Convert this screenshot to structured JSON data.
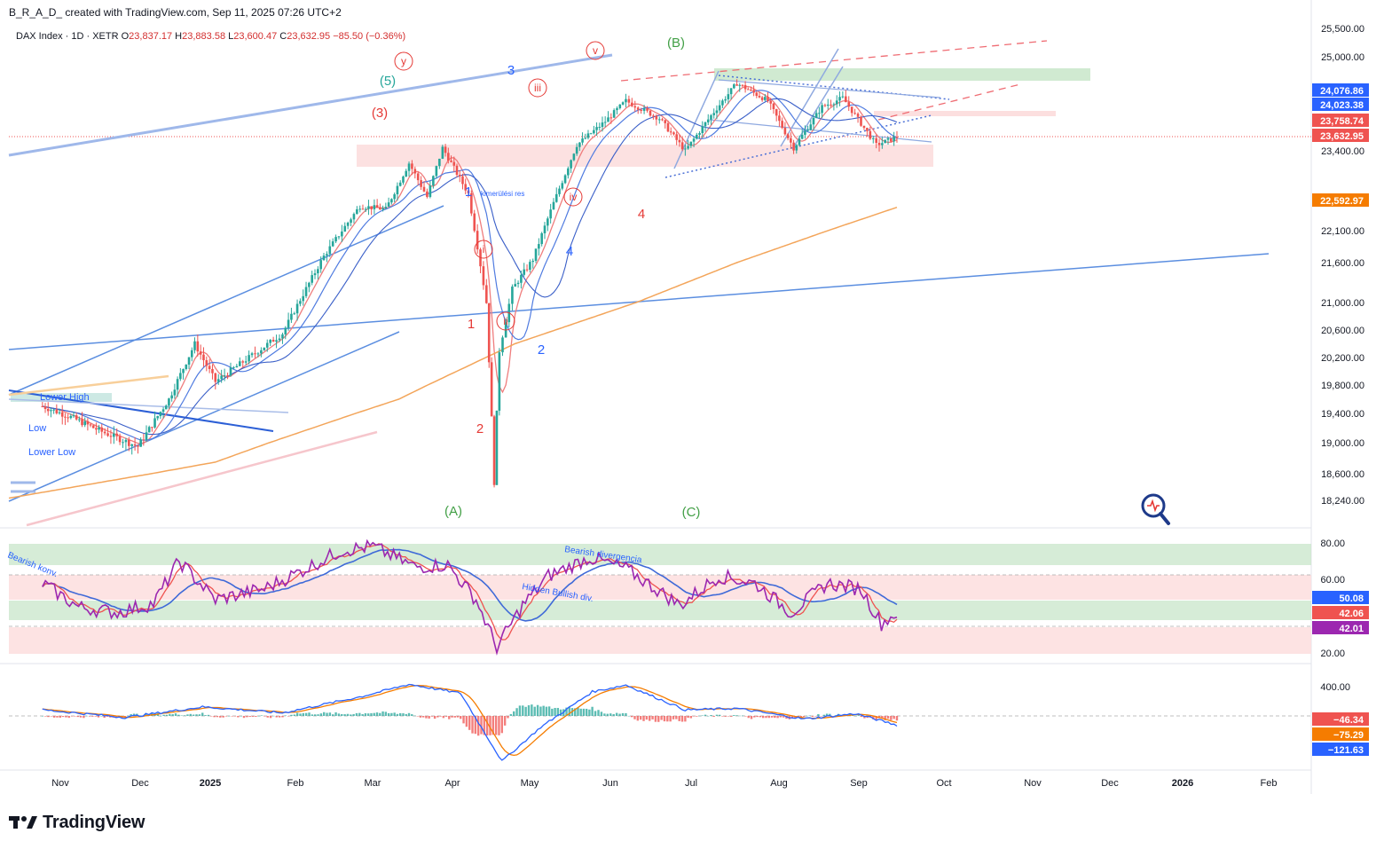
{
  "header": {
    "caption": "B_R_A_D_ created with TradingView.com, Sep 11, 2025 07:26 UTC+2"
  },
  "legend": {
    "symbol": "DAX Index · 1D · XETR",
    "open_label": "O",
    "open": "23,837.17",
    "high_label": "H",
    "high": "23,883.58",
    "low_label": "L",
    "low": "23,600.47",
    "close_label": "C",
    "close": "23,632.95",
    "change": "−85.50 (−0.36%)"
  },
  "footer": {
    "brand": "TradingView"
  },
  "colors": {
    "up": "#26a69a",
    "down": "#ef5350",
    "blue": "#2962ff",
    "orange": "#f7a046",
    "purple": "#9c27b0",
    "green_zone": "#c8e6c9",
    "red_zone": "#fcdcdc",
    "text": "#131722"
  },
  "chart_data": [
    {
      "type": "line",
      "title": "DAX Index · 1D · XETR",
      "x_ticks": [
        "Nov",
        "Dec",
        "2025",
        "Feb",
        "Mar",
        "Apr",
        "May",
        "Jun",
        "Jul",
        "Aug",
        "Sep",
        "Oct",
        "Nov",
        "Dec",
        "2026",
        "Feb"
      ],
      "y_ticks": [
        "25,500.00",
        "25,000.00",
        "23,400.00",
        "22,100.00",
        "21,600.00",
        "21,000.00",
        "20,600.00",
        "20,200.00",
        "19,800.00",
        "19,400.00",
        "19,000.00",
        "18,600.00",
        "18,240.00"
      ],
      "price_path": [
        [
          "2024-10-14",
          19500
        ],
        [
          "2024-10-25",
          19350
        ],
        [
          "2024-11-06",
          19150
        ],
        [
          "2024-11-20",
          18950
        ],
        [
          "2024-12-02",
          19600
        ],
        [
          "2024-12-12",
          20400
        ],
        [
          "2024-12-20",
          19850
        ],
        [
          "2025-01-02",
          20200
        ],
        [
          "2025-01-15",
          20550
        ],
        [
          "2025-01-31",
          21700
        ],
        [
          "2025-02-14",
          22500
        ],
        [
          "2025-02-24",
          22450
        ],
        [
          "2025-03-05",
          23200
        ],
        [
          "2025-03-12",
          22650
        ],
        [
          "2025-03-18",
          23450
        ],
        [
          "2025-03-28",
          22700
        ],
        [
          "2025-04-04",
          21000
        ],
        [
          "2025-04-07",
          18490
        ],
        [
          "2025-04-09",
          20300
        ],
        [
          "2025-04-14",
          21200
        ],
        [
          "2025-04-22",
          21650
        ],
        [
          "2025-04-30",
          22550
        ],
        [
          "2025-05-09",
          23500
        ],
        [
          "2025-05-20",
          23900
        ],
        [
          "2025-05-28",
          24250
        ],
        [
          "2025-06-10",
          23950
        ],
        [
          "2025-06-20",
          23400
        ],
        [
          "2025-06-30",
          24000
        ],
        [
          "2025-07-10",
          24550
        ],
        [
          "2025-07-22",
          24250
        ],
        [
          "2025-08-01",
          23450
        ],
        [
          "2025-08-12",
          24150
        ],
        [
          "2025-08-20",
          24300
        ],
        [
          "2025-09-02",
          23500
        ],
        [
          "2025-09-10",
          23632.95
        ]
      ],
      "price_labels": [
        {
          "value": "24,076.86",
          "color": "#2962ff"
        },
        {
          "value": "24,023.38",
          "color": "#2962ff"
        },
        {
          "value": "23,758.74",
          "color": "#ef5350"
        },
        {
          "value": "23,632.95",
          "color": "#ef5350"
        },
        {
          "value": "22,592.97",
          "color": "#f57c00"
        }
      ],
      "wave_labels": [
        {
          "text": "(5)",
          "color": "#26a69a"
        },
        {
          "text": "(3)",
          "color": "#e53935"
        },
        {
          "text": "y",
          "color": "#e53935"
        },
        {
          "text": "v",
          "color": "#e53935"
        },
        {
          "text": "(B)",
          "color": "#43a047"
        },
        {
          "text": "3",
          "color": "#2962ff"
        },
        {
          "text": "iii",
          "color": "#e53935"
        },
        {
          "text": "1",
          "color": "#2962ff"
        },
        {
          "text": "iv",
          "color": "#e53935"
        },
        {
          "text": "4",
          "color": "#e53935"
        },
        {
          "text": "i",
          "color": "#e53935"
        },
        {
          "text": "4",
          "color": "#2962ff"
        },
        {
          "text": "1",
          "color": "#e53935"
        },
        {
          "text": "ii",
          "color": "#e53935"
        },
        {
          "text": "2",
          "color": "#2962ff"
        },
        {
          "text": "2",
          "color": "#e53935"
        },
        {
          "text": "(A)",
          "color": "#43a047"
        },
        {
          "text": "(C)",
          "color": "#43a047"
        }
      ],
      "annotations": [
        "Lower High",
        "Low",
        "Lower Low",
        "kimerülési res"
      ]
    },
    {
      "type": "line",
      "title": "RSI",
      "y_ticks": [
        "80.00",
        "60.00",
        "20.00"
      ],
      "ylim": [
        20,
        85
      ],
      "value_labels": [
        {
          "value": "50.08",
          "color": "#2962ff"
        },
        {
          "value": "42.06",
          "color": "#ef5350"
        },
        {
          "value": "42.01",
          "color": "#9c27b0"
        }
      ],
      "annotations": [
        "Bearish konv.",
        "Bearish divergencia",
        "Hidden Bullish div."
      ],
      "rsi_path": [
        [
          "2024-10-14",
          58
        ],
        [
          "2024-10-28",
          45
        ],
        [
          "2024-11-12",
          42
        ],
        [
          "2024-11-26",
          47
        ],
        [
          "2024-12-06",
          70
        ],
        [
          "2024-12-20",
          49
        ],
        [
          "2025-01-08",
          55
        ],
        [
          "2025-01-24",
          66
        ],
        [
          "2025-02-07",
          76
        ],
        [
          "2025-02-19",
          78
        ],
        [
          "2025-03-07",
          67
        ],
        [
          "2025-03-20",
          68
        ],
        [
          "2025-03-31",
          49
        ],
        [
          "2025-04-08",
          23
        ],
        [
          "2025-04-18",
          46
        ],
        [
          "2025-04-28",
          62
        ],
        [
          "2025-05-14",
          72
        ],
        [
          "2025-05-28",
          66
        ],
        [
          "2025-06-18",
          46
        ],
        [
          "2025-07-03",
          62
        ],
        [
          "2025-07-17",
          58
        ],
        [
          "2025-07-31",
          42
        ],
        [
          "2025-08-14",
          58
        ],
        [
          "2025-08-27",
          55
        ],
        [
          "2025-09-04",
          36
        ],
        [
          "2025-09-10",
          42.01
        ]
      ]
    },
    {
      "type": "line",
      "title": "MACD",
      "y_ticks": [
        "400.00"
      ],
      "value_labels": [
        {
          "value": "−46.34",
          "color": "#ef5350"
        },
        {
          "value": "−75.29",
          "color": "#f57c00"
        },
        {
          "value": "−121.63",
          "color": "#2962ff"
        }
      ],
      "macd_path": [
        [
          "2024-10-14",
          80
        ],
        [
          "2024-11-15",
          -20
        ],
        [
          "2024-12-15",
          120
        ],
        [
          "2025-01-15",
          40
        ],
        [
          "2025-02-15",
          260
        ],
        [
          "2025-03-05",
          420
        ],
        [
          "2025-03-25",
          300
        ],
        [
          "2025-04-10",
          -600
        ],
        [
          "2025-04-25",
          -150
        ],
        [
          "2025-05-15",
          320
        ],
        [
          "2025-05-28",
          410
        ],
        [
          "2025-06-20",
          80
        ],
        [
          "2025-07-10",
          100
        ],
        [
          "2025-08-05",
          -40
        ],
        [
          "2025-08-25",
          30
        ],
        [
          "2025-09-10",
          -121.63
        ]
      ]
    }
  ]
}
